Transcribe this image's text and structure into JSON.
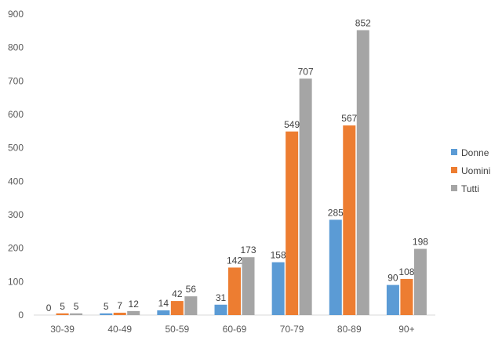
{
  "chart_data": {
    "type": "bar",
    "title": "",
    "xlabel": "",
    "ylabel": "",
    "categories": [
      "30-39",
      "40-49",
      "50-59",
      "60-69",
      "70-79",
      "80-89",
      "90+"
    ],
    "series": [
      {
        "name": "Donne",
        "color": "#5B9BD5",
        "values": [
          0,
          5,
          14,
          31,
          158,
          285,
          90
        ]
      },
      {
        "name": "Uomini",
        "color": "#ED7D31",
        "values": [
          5,
          7,
          42,
          142,
          549,
          567,
          108
        ]
      },
      {
        "name": "Tutti",
        "color": "#A5A5A5",
        "values": [
          5,
          12,
          56,
          173,
          707,
          852,
          198
        ]
      }
    ],
    "ylim": [
      0,
      900
    ],
    "yticks": [
      0,
      100,
      200,
      300,
      400,
      500,
      600,
      700,
      800,
      900
    ],
    "grid": false,
    "legend": "right",
    "data_labels": true
  }
}
